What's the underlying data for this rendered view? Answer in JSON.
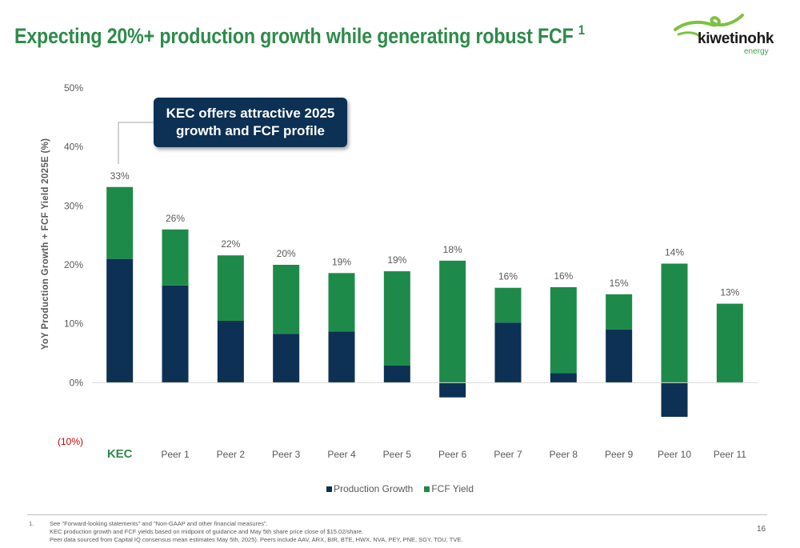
{
  "header": {
    "title": "Expecting 20%+ production growth while generating robust FCF",
    "title_footnote": "1"
  },
  "logo": {
    "word": "kiwetinohk",
    "sub": "energy"
  },
  "callout": {
    "line1": "KEC offers attractive 2025",
    "line2": "growth and FCF profile"
  },
  "footer": {
    "note_number": "1.",
    "lines": [
      "See \"Forward-looking statements\" and \"Non-GAAP and other financial measures\".",
      "KEC production growth and FCF yields based on midpoint of guidance and May 5th share price close of $15.02/share.",
      "Peer data sourced from Capital IQ consensus mean estimates May 5th, 2025). Peers include AAV, ARX, BIR, BTE, HWX, NVA, PEY, PNE, SGY, TOU, TVE."
    ],
    "page_number": "16"
  },
  "colors": {
    "production": "#0c3154",
    "fcf": "#1e8a4a",
    "title": "#2e8b4a",
    "negative_label": "#c00000"
  },
  "chart_data": {
    "type": "bar",
    "stacked": true,
    "ylabel": "YoY Production Growth + FCF Yield 2025E (%)",
    "ylim": [
      -10,
      50
    ],
    "ytick_labels": [
      "(10%)",
      "0%",
      "10%",
      "20%",
      "30%",
      "40%",
      "50%"
    ],
    "yticks": [
      -10,
      0,
      10,
      20,
      30,
      40,
      50
    ],
    "categories": [
      "KEC",
      "Peer 1",
      "Peer 2",
      "Peer 3",
      "Peer 4",
      "Peer 5",
      "Peer 6",
      "Peer 7",
      "Peer 8",
      "Peer 9",
      "Peer 10",
      "Peer 11"
    ],
    "series": [
      {
        "name": "Production Growth",
        "values": [
          21,
          16.5,
          10.5,
          8.3,
          8.7,
          2.9,
          -2.5,
          10.2,
          1.6,
          9.0,
          -5.8,
          0
        ]
      },
      {
        "name": "FCF Yield",
        "values": [
          12.2,
          9.5,
          11.1,
          11.7,
          9.9,
          16.0,
          20.7,
          5.9,
          14.6,
          6.0,
          20.2,
          13.4
        ]
      }
    ],
    "total_labels": [
      "33%",
      "26%",
      "22%",
      "20%",
      "19%",
      "19%",
      "18%",
      "16%",
      "16%",
      "15%",
      "14%",
      "13%"
    ],
    "legend_position": "bottom"
  }
}
